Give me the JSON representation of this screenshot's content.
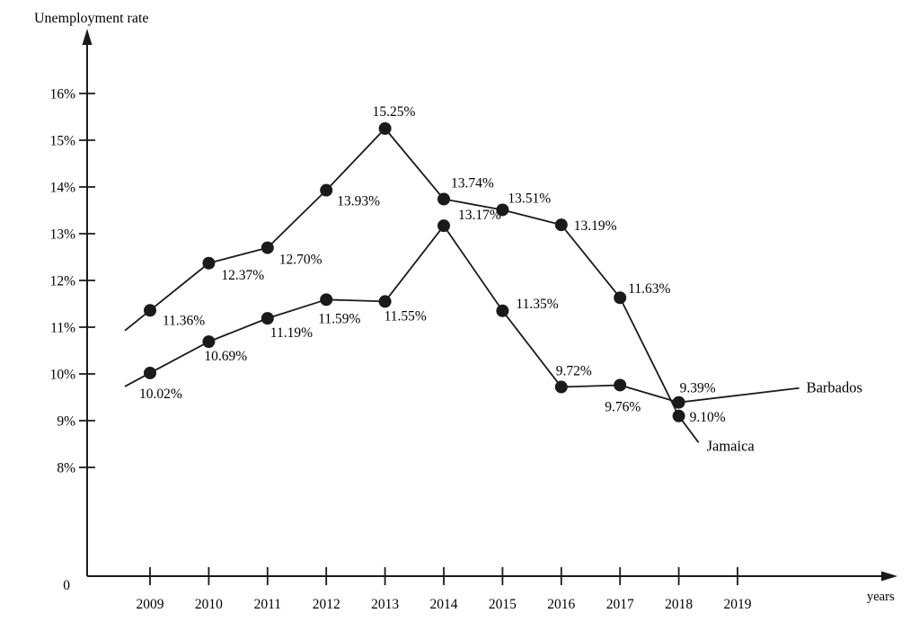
{
  "chart_data": {
    "type": "line",
    "title": "Unemployment rate",
    "ylabel": "Unemployment rate",
    "xlabel": "years",
    "origin_label": "0",
    "grid": false,
    "legend_position": "line-end-labels",
    "xlim": [
      2008.5,
      2020
    ],
    "ylim": [
      0,
      17
    ],
    "y_axis_drawn_range": [
      8,
      16
    ],
    "x_ticks": [
      {
        "value": 2009,
        "label": "2009"
      },
      {
        "value": 2010,
        "label": "2010"
      },
      {
        "value": 2011,
        "label": "2011"
      },
      {
        "value": 2012,
        "label": "2012"
      },
      {
        "value": 2013,
        "label": "2013"
      },
      {
        "value": 2014,
        "label": "2014"
      },
      {
        "value": 2015,
        "label": "2015"
      },
      {
        "value": 2016,
        "label": "2016"
      },
      {
        "value": 2017,
        "label": "2017"
      },
      {
        "value": 2018,
        "label": "2018"
      },
      {
        "value": 2019,
        "label": "2019"
      }
    ],
    "y_ticks": [
      {
        "value": 16,
        "label": "16%"
      },
      {
        "value": 15,
        "label": "15%"
      },
      {
        "value": 14,
        "label": "14%"
      },
      {
        "value": 13,
        "label": "13%"
      },
      {
        "value": 12,
        "label": "12%"
      },
      {
        "value": 11,
        "label": "11%"
      },
      {
        "value": 10,
        "label": "10%"
      },
      {
        "value": 9,
        "label": "9%"
      },
      {
        "value": 8,
        "label": "8%"
      }
    ],
    "x": [
      2009,
      2010,
      2011,
      2012,
      2013,
      2014,
      2015,
      2016,
      2017,
      2018
    ],
    "series": [
      {
        "name": "Jamaica",
        "values": [
          11.36,
          12.37,
          12.7,
          13.93,
          15.25,
          13.74,
          13.51,
          13.19,
          11.63,
          9.1
        ],
        "point_labels": [
          "11.36%",
          "12.37%",
          "12.70%",
          "13.93%",
          "15.25%",
          "13.74%",
          "13.51%",
          "13.19%",
          "11.63%",
          "9.10%"
        ]
      },
      {
        "name": "Barbados",
        "values": [
          10.02,
          10.69,
          11.19,
          11.59,
          11.55,
          13.17,
          11.35,
          9.72,
          9.76,
          9.39
        ],
        "point_labels": [
          "10.02%",
          "10.69%",
          "11.19%",
          "11.59%",
          "11.55%",
          "13.17%",
          "11.35%",
          "9.72%",
          "9.76%",
          "9.39%"
        ]
      }
    ],
    "colors": {
      "line": "#1a1a1a",
      "text": "#000000",
      "background": "#ffffff"
    }
  }
}
